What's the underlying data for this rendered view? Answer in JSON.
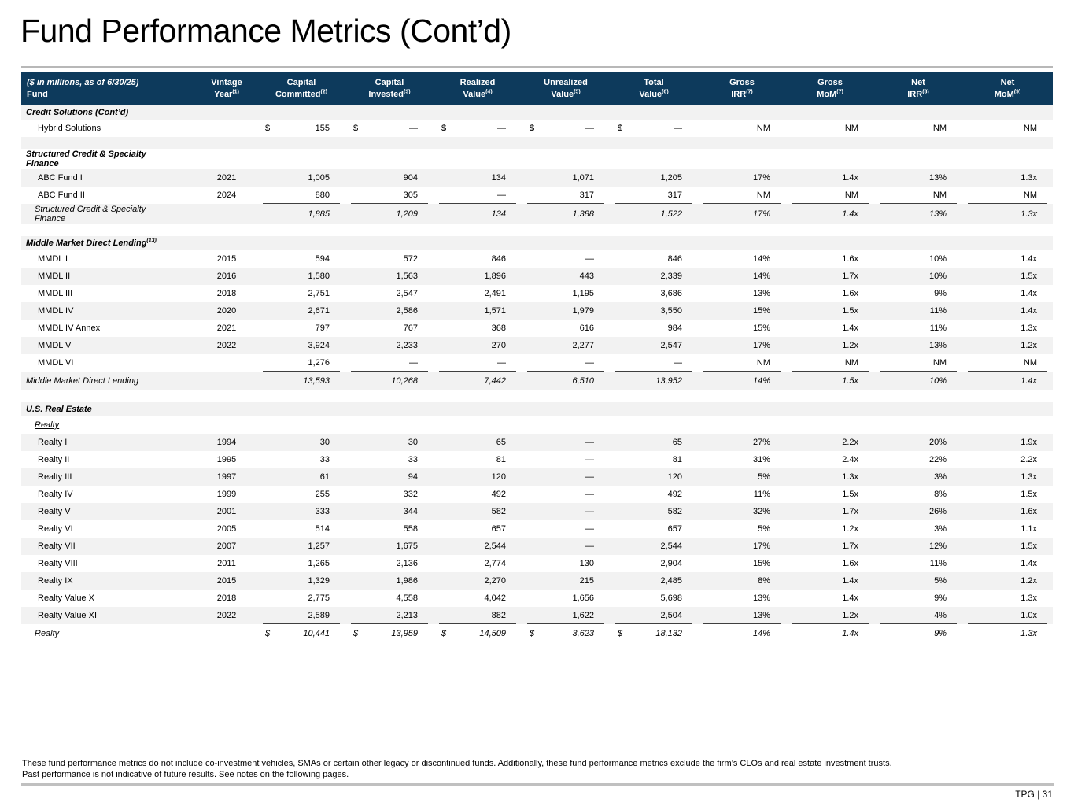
{
  "page": {
    "title": "Fund Performance Metrics (Cont’d)",
    "footnote_line1": "These fund performance metrics do not include co-investment vehicles, SMAs or certain other legacy or discontinued funds. Additionally, these fund performance metrics exclude the firm’s CLOs and real estate investment trusts.",
    "footnote_line2": "Past performance is not indicative of future results. See notes on the following pages.",
    "page_label": "TPG | 31"
  },
  "colors": {
    "header_bg": "#0d3a5c",
    "stripe": "#f2f2f2",
    "title_rule": "#b8b8b8",
    "sum_line": "#3f3f3f"
  },
  "table": {
    "columns": [
      {
        "id": "fund",
        "line1": "($ in millions, as of 6/30/25)",
        "line2": "Fund",
        "sup": ""
      },
      {
        "id": "vintage",
        "line1": "Vintage",
        "line2": "Year",
        "sup": "(1)"
      },
      {
        "id": "committed",
        "line1": "Capital",
        "line2": "Committed",
        "sup": "(2)"
      },
      {
        "id": "invested",
        "line1": "Capital",
        "line2": "Invested",
        "sup": "(3)"
      },
      {
        "id": "realized",
        "line1": "Realized",
        "line2": "Value",
        "sup": "(4)"
      },
      {
        "id": "unrealized",
        "line1": "Unrealized",
        "line2": "Value",
        "sup": "(5)"
      },
      {
        "id": "total",
        "line1": "Total",
        "line2": "Value",
        "sup": "(6)"
      },
      {
        "id": "gross_irr",
        "line1": "Gross",
        "line2": "IRR",
        "sup": "(7)"
      },
      {
        "id": "gross_mom",
        "line1": "Gross",
        "line2": "MoM",
        "sup": "(7)"
      },
      {
        "id": "net_irr",
        "line1": "Net",
        "line2": "IRR",
        "sup": "(8)"
      },
      {
        "id": "net_mom",
        "line1": "Net",
        "line2": "MoM",
        "sup": "(9)"
      }
    ],
    "dollar_columns": [
      "committed",
      "invested",
      "realized",
      "unrealized",
      "total"
    ],
    "rows": [
      {
        "type": "section",
        "name": "Credit Solutions (Cont’d)"
      },
      {
        "type": "fund",
        "name": "Hybrid Solutions",
        "dollar": true,
        "vintage": "",
        "committed": "155",
        "invested": "—",
        "realized": "—",
        "unrealized": "—",
        "total": "—",
        "gross_irr": "NM",
        "gross_mom": "NM",
        "net_irr": "NM",
        "net_mom": "NM"
      },
      {
        "type": "blank"
      },
      {
        "type": "section",
        "name": "Structured Credit & Specialty Finance"
      },
      {
        "type": "fund",
        "name": "ABC Fund I",
        "vintage": "2021",
        "committed": "1,005",
        "invested": "904",
        "realized": "134",
        "unrealized": "1,071",
        "total": "1,205",
        "gross_irr": "17%",
        "gross_mom": "1.4x",
        "net_irr": "13%",
        "net_mom": "1.3x"
      },
      {
        "type": "fund",
        "name": "ABC Fund II",
        "rule": true,
        "vintage": "2024",
        "committed": "880",
        "invested": "305",
        "realized": "—",
        "unrealized": "317",
        "total": "317",
        "gross_irr": "NM",
        "gross_mom": "NM",
        "net_irr": "NM",
        "net_mom": "NM"
      },
      {
        "type": "subtotal",
        "name": "Structured Credit & Specialty Finance",
        "vintage": "",
        "committed": "1,885",
        "invested": "1,209",
        "realized": "134",
        "unrealized": "1,388",
        "total": "1,522",
        "gross_irr": "17%",
        "gross_mom": "1.4x",
        "net_irr": "13%",
        "net_mom": "1.3x"
      },
      {
        "type": "blank"
      },
      {
        "type": "section",
        "name": "Middle Market Direct Lending",
        "sup": "(13)"
      },
      {
        "type": "fund",
        "name": "MMDL I",
        "vintage": "2015",
        "committed": "594",
        "invested": "572",
        "realized": "846",
        "unrealized": "—",
        "total": "846",
        "gross_irr": "14%",
        "gross_mom": "1.6x",
        "net_irr": "10%",
        "net_mom": "1.4x"
      },
      {
        "type": "fund",
        "name": "MMDL II",
        "vintage": "2016",
        "committed": "1,580",
        "invested": "1,563",
        "realized": "1,896",
        "unrealized": "443",
        "total": "2,339",
        "gross_irr": "14%",
        "gross_mom": "1.7x",
        "net_irr": "10%",
        "net_mom": "1.5x"
      },
      {
        "type": "fund",
        "name": "MMDL III",
        "vintage": "2018",
        "committed": "2,751",
        "invested": "2,547",
        "realized": "2,491",
        "unrealized": "1,195",
        "total": "3,686",
        "gross_irr": "13%",
        "gross_mom": "1.6x",
        "net_irr": "9%",
        "net_mom": "1.4x"
      },
      {
        "type": "fund",
        "name": "MMDL IV",
        "vintage": "2020",
        "committed": "2,671",
        "invested": "2,586",
        "realized": "1,571",
        "unrealized": "1,979",
        "total": "3,550",
        "gross_irr": "15%",
        "gross_mom": "1.5x",
        "net_irr": "11%",
        "net_mom": "1.4x"
      },
      {
        "type": "fund",
        "name": "MMDL IV Annex",
        "vintage": "2021",
        "committed": "797",
        "invested": "767",
        "realized": "368",
        "unrealized": "616",
        "total": "984",
        "gross_irr": "15%",
        "gross_mom": "1.4x",
        "net_irr": "11%",
        "net_mom": "1.3x"
      },
      {
        "type": "fund",
        "name": "MMDL V",
        "vintage": "2022",
        "committed": "3,924",
        "invested": "2,233",
        "realized": "270",
        "unrealized": "2,277",
        "total": "2,547",
        "gross_irr": "17%",
        "gross_mom": "1.2x",
        "net_irr": "13%",
        "net_mom": "1.2x"
      },
      {
        "type": "fund",
        "name": "MMDL VI",
        "rule": true,
        "vintage": "",
        "committed": "1,276",
        "invested": "—",
        "realized": "—",
        "unrealized": "—",
        "total": "—",
        "gross_irr": "NM",
        "gross_mom": "NM",
        "net_irr": "NM",
        "net_mom": "NM"
      },
      {
        "type": "subtotal",
        "name": "Middle Market Direct Lending",
        "indent": 0,
        "vintage": "",
        "committed": "13,593",
        "invested": "10,268",
        "realized": "7,442",
        "unrealized": "6,510",
        "total": "13,952",
        "gross_irr": "14%",
        "gross_mom": "1.5x",
        "net_irr": "10%",
        "net_mom": "1.4x"
      },
      {
        "type": "blank"
      },
      {
        "type": "section",
        "name": "U.S. Real Estate"
      },
      {
        "type": "subsection",
        "name": "Realty"
      },
      {
        "type": "fund",
        "name": "Realty I",
        "vintage": "1994",
        "committed": "30",
        "invested": "30",
        "realized": "65",
        "unrealized": "—",
        "total": "65",
        "gross_irr": "27%",
        "gross_mom": "2.2x",
        "net_irr": "20%",
        "net_mom": "1.9x"
      },
      {
        "type": "fund",
        "name": "Realty II",
        "vintage": "1995",
        "committed": "33",
        "invested": "33",
        "realized": "81",
        "unrealized": "—",
        "total": "81",
        "gross_irr": "31%",
        "gross_mom": "2.4x",
        "net_irr": "22%",
        "net_mom": "2.2x"
      },
      {
        "type": "fund",
        "name": "Realty III",
        "vintage": "1997",
        "committed": "61",
        "invested": "94",
        "realized": "120",
        "unrealized": "—",
        "total": "120",
        "gross_irr": "5%",
        "gross_mom": "1.3x",
        "net_irr": "3%",
        "net_mom": "1.3x"
      },
      {
        "type": "fund",
        "name": "Realty IV",
        "vintage": "1999",
        "committed": "255",
        "invested": "332",
        "realized": "492",
        "unrealized": "—",
        "total": "492",
        "gross_irr": "11%",
        "gross_mom": "1.5x",
        "net_irr": "8%",
        "net_mom": "1.5x"
      },
      {
        "type": "fund",
        "name": "Realty V",
        "vintage": "2001",
        "committed": "333",
        "invested": "344",
        "realized": "582",
        "unrealized": "—",
        "total": "582",
        "gross_irr": "32%",
        "gross_mom": "1.7x",
        "net_irr": "26%",
        "net_mom": "1.6x"
      },
      {
        "type": "fund",
        "name": "Realty VI",
        "vintage": "2005",
        "committed": "514",
        "invested": "558",
        "realized": "657",
        "unrealized": "—",
        "total": "657",
        "gross_irr": "5%",
        "gross_mom": "1.2x",
        "net_irr": "3%",
        "net_mom": "1.1x"
      },
      {
        "type": "fund",
        "name": "Realty VII",
        "vintage": "2007",
        "committed": "1,257",
        "invested": "1,675",
        "realized": "2,544",
        "unrealized": "—",
        "total": "2,544",
        "gross_irr": "17%",
        "gross_mom": "1.7x",
        "net_irr": "12%",
        "net_mom": "1.5x"
      },
      {
        "type": "fund",
        "name": "Realty VIII",
        "vintage": "2011",
        "committed": "1,265",
        "invested": "2,136",
        "realized": "2,774",
        "unrealized": "130",
        "total": "2,904",
        "gross_irr": "15%",
        "gross_mom": "1.6x",
        "net_irr": "11%",
        "net_mom": "1.4x"
      },
      {
        "type": "fund",
        "name": "Realty IX",
        "vintage": "2015",
        "committed": "1,329",
        "invested": "1,986",
        "realized": "2,270",
        "unrealized": "215",
        "total": "2,485",
        "gross_irr": "8%",
        "gross_mom": "1.4x",
        "net_irr": "5%",
        "net_mom": "1.2x"
      },
      {
        "type": "fund",
        "name": "Realty Value X",
        "vintage": "2018",
        "committed": "2,775",
        "invested": "4,558",
        "realized": "4,042",
        "unrealized": "1,656",
        "total": "5,698",
        "gross_irr": "13%",
        "gross_mom": "1.4x",
        "net_irr": "9%",
        "net_mom": "1.3x"
      },
      {
        "type": "fund",
        "name": "Realty Value XI",
        "rule": true,
        "vintage": "2022",
        "committed": "2,589",
        "invested": "2,213",
        "realized": "882",
        "unrealized": "1,622",
        "total": "2,504",
        "gross_irr": "13%",
        "gross_mom": "1.2x",
        "net_irr": "4%",
        "net_mom": "1.0x"
      },
      {
        "type": "subtotal",
        "name": "Realty",
        "dollar": true,
        "vintage": "",
        "committed": "10,441",
        "invested": "13,959",
        "realized": "14,509",
        "unrealized": "3,623",
        "total": "18,132",
        "gross_irr": "14%",
        "gross_mom": "1.4x",
        "net_irr": "9%",
        "net_mom": "1.3x"
      }
    ]
  }
}
